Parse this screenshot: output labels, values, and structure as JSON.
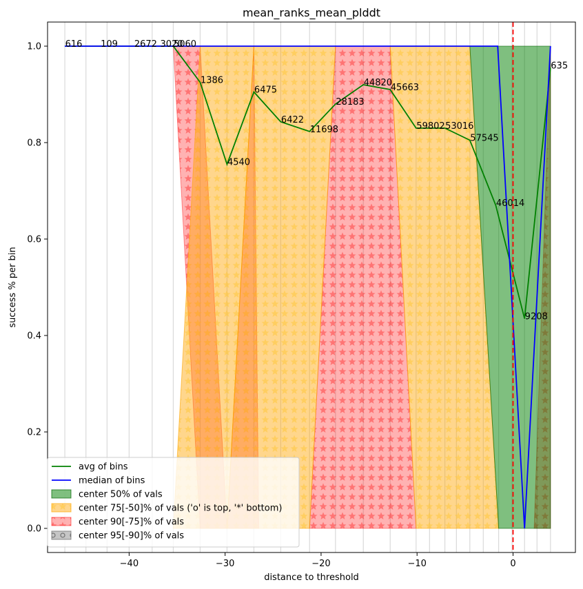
{
  "chart_data": {
    "type": "line",
    "title": "mean_ranks_mean_plddt",
    "xlabel": "distance to threshold",
    "ylabel": "success % per bin",
    "xlim": [
      -48.5,
      6.5
    ],
    "ylim": [
      -0.05,
      1.05
    ],
    "x_ticks": [
      -40,
      -30,
      -20,
      -10,
      0
    ],
    "x_tick_labels": [
      "−40",
      "−30",
      "−20",
      "−10",
      "0"
    ],
    "y_ticks": [
      0.0,
      0.2,
      0.4,
      0.6,
      0.8,
      1.0
    ],
    "y_tick_labels": [
      "0.0",
      "0.2",
      "0.4",
      "0.6",
      "0.8",
      "1.0"
    ],
    "threshold_x": 0,
    "grid_x": [
      -46.7,
      -44.5,
      -42.3,
      -40.0,
      -37.6,
      -35.4,
      -32.6,
      -29.8,
      -27.0,
      -24.2,
      -21.2,
      -18.5,
      -15.6,
      -12.8,
      -10.1,
      -8.7,
      -7.1,
      -5.9,
      -4.5,
      -3.1,
      -1.5,
      -0.1,
      1.2,
      2.5,
      3.9
    ],
    "colors": {
      "avg": "#008000",
      "median": "#0000ff",
      "threshold": "#ff0000",
      "band50": "#008000",
      "band75": "#ffa500",
      "band90": "#ff0000",
      "band95": "#808080"
    },
    "series": [
      {
        "name": "avg of bins",
        "points": [
          {
            "x": -46.7,
            "y": 1.0,
            "label": "616"
          },
          {
            "x": -43.0,
            "y": 1.0,
            "label": "109"
          },
          {
            "x": -39.5,
            "y": 1.0,
            "label": "2672"
          },
          {
            "x": -36.8,
            "y": 1.0,
            "label": "3020"
          },
          {
            "x": -35.4,
            "y": 1.0,
            "label": "5060"
          },
          {
            "x": -32.6,
            "y": 0.925,
            "label": "1386"
          },
          {
            "x": -29.8,
            "y": 0.755,
            "label": "4540"
          },
          {
            "x": -27.0,
            "y": 0.905,
            "label": "6475"
          },
          {
            "x": -24.2,
            "y": 0.843,
            "label": "6422"
          },
          {
            "x": -21.2,
            "y": 0.823,
            "label": "11698"
          },
          {
            "x": -18.5,
            "y": 0.88,
            "label": "28183"
          },
          {
            "x": -15.6,
            "y": 0.92,
            "label": "44820"
          },
          {
            "x": -12.8,
            "y": 0.91,
            "label": "45663"
          },
          {
            "x": -10.1,
            "y": 0.83,
            "label": "59802"
          },
          {
            "x": -7.1,
            "y": 0.83,
            "label": "53016"
          },
          {
            "x": -4.5,
            "y": 0.805,
            "label": "57545"
          },
          {
            "x": -1.8,
            "y": 0.67,
            "label": "46014"
          },
          {
            "x": 1.2,
            "y": 0.435,
            "label": "9208"
          },
          {
            "x": 3.9,
            "y": 0.955,
            "label": "635"
          }
        ]
      },
      {
        "name": "median of bins",
        "points": [
          {
            "x": -46.7,
            "y": 1.0
          },
          {
            "x": -1.6,
            "y": 1.0
          },
          {
            "x": 1.2,
            "y": 0.0
          },
          {
            "x": 3.9,
            "y": 1.0
          }
        ]
      }
    ],
    "bands": [
      {
        "name": "center 50% of vals",
        "hatch": "none",
        "polygons": [
          [
            [
              -4.5,
              1.0
            ],
            [
              3.9,
              1.0
            ],
            [
              3.9,
              0.0
            ],
            [
              -1.5,
              0.0
            ]
          ]
        ]
      },
      {
        "name": "center 75[-50]% of vals ('o' is top, '*' bottom)",
        "hatch": "stars",
        "polygons": [
          [
            [
              -32.6,
              1.0
            ],
            [
              -27.0,
              1.0
            ],
            [
              -29.8,
              0.0
            ],
            [
              -35.4,
              0.0
            ]
          ],
          [
            [
              -27.0,
              1.0
            ],
            [
              -18.5,
              1.0
            ],
            [
              -21.2,
              0.0
            ],
            [
              -29.8,
              0.0
            ]
          ],
          [
            [
              -12.8,
              1.0
            ],
            [
              -4.5,
              1.0
            ],
            [
              -1.5,
              0.0
            ],
            [
              -10.1,
              0.0
            ]
          ]
        ]
      },
      {
        "name": "center 90[-75]% of vals",
        "hatch": "stars",
        "polygons": [
          [
            [
              -35.4,
              1.0
            ],
            [
              -32.6,
              1.0
            ],
            [
              -29.8,
              0.0
            ],
            [
              -32.6,
              0.0
            ]
          ],
          [
            [
              -27.0,
              1.0
            ],
            [
              -29.8,
              0.0
            ],
            [
              -26.5,
              0.0
            ]
          ],
          [
            [
              -18.5,
              1.0
            ],
            [
              -12.8,
              1.0
            ],
            [
              -10.1,
              0.0
            ],
            [
              -21.2,
              0.0
            ]
          ],
          [
            [
              2.2,
              0.0
            ],
            [
              3.9,
              1.0
            ],
            [
              3.9,
              0.0
            ]
          ]
        ]
      },
      {
        "name": "center 95[-90]% of vals",
        "hatch": "circles",
        "polygons": []
      }
    ],
    "legend": {
      "position": "lower left",
      "entries": [
        {
          "label": "avg of bins",
          "kind": "line",
          "series": "avg"
        },
        {
          "label": "median of bins",
          "kind": "line",
          "series": "median"
        },
        {
          "label": "center 50% of vals",
          "kind": "patch",
          "band": "band50"
        },
        {
          "label": "center 75[-50]% of vals ('o' is top, '*' bottom)",
          "kind": "patch",
          "band": "band75"
        },
        {
          "label": "center 90[-75]% of vals",
          "kind": "patch",
          "band": "band90"
        },
        {
          "label": "center 95[-90]% of vals",
          "kind": "patch",
          "band": "band95"
        }
      ]
    }
  }
}
